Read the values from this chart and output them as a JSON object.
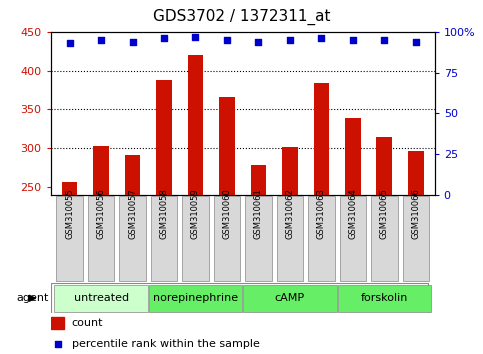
{
  "title": "GDS3702 / 1372311_at",
  "samples": [
    "GSM310055",
    "GSM310056",
    "GSM310057",
    "GSM310058",
    "GSM310059",
    "GSM310060",
    "GSM310061",
    "GSM310062",
    "GSM310063",
    "GSM310064",
    "GSM310065",
    "GSM310066"
  ],
  "counts": [
    257,
    303,
    291,
    388,
    420,
    366,
    278,
    301,
    384,
    339,
    315,
    297
  ],
  "percentiles": [
    93,
    95,
    94,
    96,
    97,
    95,
    94,
    95,
    96,
    95,
    95,
    94
  ],
  "bar_color": "#cc1100",
  "dot_color": "#0000cc",
  "ylim_left": [
    240,
    450
  ],
  "ylim_right": [
    0,
    100
  ],
  "yticks_left": [
    250,
    300,
    350,
    400,
    450
  ],
  "yticks_right": [
    0,
    25,
    50,
    75,
    100
  ],
  "grid_lines": [
    300,
    350,
    400
  ],
  "agents": [
    {
      "label": "untreated",
      "start": 0,
      "end": 3,
      "color": "#ccffcc"
    },
    {
      "label": "norepinephrine",
      "start": 3,
      "end": 6,
      "color": "#66ee66"
    },
    {
      "label": "cAMP",
      "start": 6,
      "end": 9,
      "color": "#66ee66"
    },
    {
      "label": "forskolin",
      "start": 9,
      "end": 12,
      "color": "#66ee66"
    }
  ],
  "agent_label": "agent",
  "legend_count_label": "count",
  "legend_pct_label": "percentile rank within the sample",
  "bar_width": 0.5,
  "background_plot": "#ffffff",
  "sample_box_color": "#d8d8d8",
  "border_color": "#888888"
}
